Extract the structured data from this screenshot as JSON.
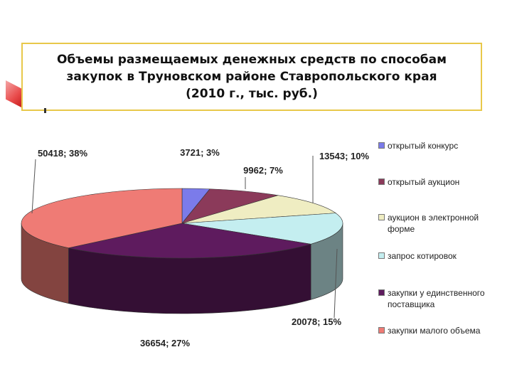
{
  "title_lines": [
    "Объемы размещаемых денежных средств по способам",
    "закупок в Труновском районе Ставропольского края",
    "(2010 г., тыс. руб.)"
  ],
  "chart_data": {
    "type": "pie",
    "title": "Объемы размещаемых денежных средств по способам закупок в Труновском районе Ставропольского края (2010 г., тыс. руб.)",
    "legend_position": "right",
    "slices": [
      {
        "name": "открытый конкурс",
        "value": 3721,
        "percent": 3,
        "label": "3721; 3%",
        "color": "#7b7bea"
      },
      {
        "name": "открытый аукцион",
        "value": 9962,
        "percent": 7,
        "label": "9962; 7%",
        "color": "#8b3a5a"
      },
      {
        "name": "аукцион в электронной форме",
        "value": 13543,
        "percent": 10,
        "label": "13543; 10%",
        "color": "#efedc2"
      },
      {
        "name": "запрос котировок",
        "value": 20078,
        "percent": 15,
        "label": "20078; 15%",
        "color": "#c4eef0"
      },
      {
        "name": "закупки у единственного поставщика",
        "value": 36654,
        "percent": 27,
        "label": "36654; 27%",
        "color": "#5e1b5e"
      },
      {
        "name": "закупки малого объема",
        "value": 50418,
        "percent": 38,
        "label": "50418; 38%",
        "color": "#ef7b75"
      }
    ]
  }
}
